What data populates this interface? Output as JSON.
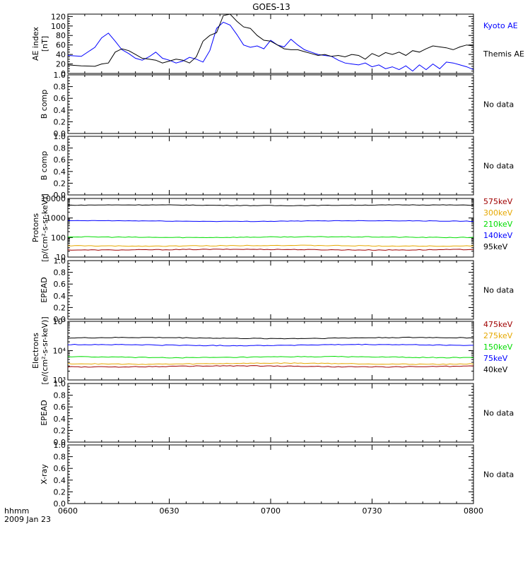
{
  "title": "GOES-13",
  "footer": {
    "line1": "hhmm",
    "line2": "2009 Jan 23"
  },
  "x_axis": {
    "tick_labels": [
      "0600",
      "0630",
      "0700",
      "0730",
      "0800"
    ],
    "range_minutes": [
      0,
      120
    ]
  },
  "no_data_text": "No data",
  "colors": {
    "black": "#000000",
    "blue": "#0000ff",
    "red": "#a00000",
    "orange": "#e6a800",
    "green": "#00dd00"
  },
  "chart_data": [
    {
      "type": "line",
      "id": "ae",
      "ylabel": [
        "AE index",
        "[nT]"
      ],
      "yscale": "linear",
      "ylim": [
        0,
        125
      ],
      "yticks": [
        0,
        20,
        40,
        60,
        80,
        100,
        120
      ],
      "series": [
        {
          "name": "Kyoto AE",
          "color": "#0000ff",
          "x": [
            0,
            4,
            8,
            10,
            12,
            14,
            16,
            18,
            20,
            22,
            24,
            26,
            28,
            30,
            32,
            34,
            36,
            38,
            40,
            42,
            44,
            46,
            48,
            50,
            52,
            54,
            56,
            58,
            60,
            62,
            64,
            66,
            68,
            70,
            72,
            74,
            76,
            78,
            80,
            82,
            84,
            86,
            88,
            90,
            92,
            94,
            96,
            98,
            100,
            102,
            104,
            106,
            108,
            110,
            112,
            114,
            116,
            118,
            120
          ],
          "y": [
            38,
            36,
            55,
            75,
            85,
            68,
            50,
            42,
            32,
            28,
            35,
            45,
            32,
            28,
            22,
            26,
            34,
            30,
            24,
            48,
            95,
            108,
            102,
            82,
            60,
            55,
            58,
            52,
            70,
            60,
            56,
            72,
            60,
            50,
            45,
            40,
            38,
            36,
            28,
            22,
            20,
            18,
            22,
            14,
            18,
            10,
            14,
            8,
            16,
            5,
            18,
            8,
            20,
            10,
            24,
            22,
            18,
            14,
            8
          ]
        },
        {
          "name": "Themis AE",
          "color": "#000000",
          "x": [
            0,
            4,
            8,
            10,
            12,
            14,
            16,
            18,
            20,
            22,
            24,
            26,
            28,
            30,
            32,
            34,
            36,
            38,
            40,
            42,
            44,
            46,
            48,
            50,
            52,
            54,
            56,
            58,
            60,
            62,
            64,
            66,
            68,
            70,
            72,
            74,
            76,
            78,
            80,
            82,
            84,
            86,
            88,
            90,
            92,
            94,
            96,
            98,
            100,
            102,
            104,
            106,
            108,
            110,
            112,
            114,
            116,
            118,
            120
          ],
          "y": [
            18,
            16,
            15,
            20,
            22,
            45,
            52,
            48,
            40,
            32,
            30,
            28,
            22,
            26,
            30,
            28,
            22,
            35,
            68,
            80,
            86,
            122,
            125,
            110,
            98,
            95,
            80,
            70,
            68,
            60,
            52,
            50,
            50,
            46,
            42,
            38,
            40,
            36,
            38,
            35,
            40,
            38,
            30,
            42,
            36,
            44,
            40,
            45,
            38,
            48,
            45,
            52,
            58,
            56,
            54,
            50,
            56,
            60,
            58
          ]
        }
      ],
      "side_labels": [
        {
          "text": "Kyoto AE",
          "color": "#0000ff"
        },
        {
          "text": "Themis AE",
          "color": "#000000"
        }
      ]
    },
    {
      "type": "line",
      "id": "b1",
      "ylabel": [
        "B comp"
      ],
      "yscale": "linear",
      "ylim": [
        0,
        1
      ],
      "yticks": [
        0.0,
        0.2,
        0.4,
        0.6,
        0.8,
        1.0
      ],
      "ytick_labels": [
        "0.0",
        "0.2",
        "0.4",
        "0.6",
        "0.8",
        "1.0"
      ],
      "series": [],
      "no_data": true
    },
    {
      "type": "line",
      "id": "b2",
      "ylabel": [
        "B comp"
      ],
      "yscale": "linear",
      "ylim": [
        0,
        1
      ],
      "yticks": [
        0.0,
        0.2,
        0.4,
        0.6,
        0.8,
        1.0
      ],
      "ytick_labels": [
        "0.0",
        "0.2",
        "0.4",
        "0.6",
        "0.8",
        "1.0"
      ],
      "series": [],
      "no_data": true
    },
    {
      "type": "line",
      "id": "protons",
      "ylabel": [
        "Protons",
        "[p/(cm²-s-sr-keV)]"
      ],
      "yscale": "log",
      "ylim": [
        10,
        10000
      ],
      "yticks": [
        10,
        100,
        1000,
        10000
      ],
      "ytick_labels": [
        "10",
        "100",
        "1000",
        "10000"
      ],
      "series": [
        {
          "name": "95keV",
          "color": "#000000",
          "base": 4500,
          "jitter": 0.03
        },
        {
          "name": "140keV",
          "color": "#0000ff",
          "base": 700,
          "jitter": 0.03
        },
        {
          "name": "210keV",
          "color": "#00dd00",
          "base": 105,
          "jitter": 0.04
        },
        {
          "name": "300keV",
          "color": "#e6a800",
          "base": 38,
          "jitter": 0.04
        },
        {
          "name": "575keV",
          "color": "#a00000",
          "base": 24,
          "jitter": 0.04
        }
      ],
      "side_labels": [
        {
          "text": "575keV",
          "color": "#a00000"
        },
        {
          "text": "300keV",
          "color": "#e6a800"
        },
        {
          "text": "210keV",
          "color": "#00dd00"
        },
        {
          "text": "140keV",
          "color": "#0000ff"
        },
        {
          "text": "95keV",
          "color": "#000000"
        }
      ]
    },
    {
      "type": "line",
      "id": "epead1",
      "ylabel": [
        "EPEAD"
      ],
      "yscale": "linear",
      "ylim": [
        0,
        1
      ],
      "yticks": [
        0.0,
        0.2,
        0.4,
        0.6,
        0.8,
        1.0
      ],
      "ytick_labels": [
        "0.0",
        "0.2",
        "0.4",
        "0.6",
        "0.8",
        "1.0"
      ],
      "series": [],
      "no_data": true
    },
    {
      "type": "line",
      "id": "electrons",
      "ylabel": [
        "Electrons",
        "[e/(cm²-s-sr-keV)]"
      ],
      "yscale": "log",
      "ylim": [
        1000,
        100000
      ],
      "yticks": [
        1000,
        10000,
        100000
      ],
      "ytick_labels": [
        "10³",
        "10⁴",
        "10⁵"
      ],
      "series": [
        {
          "name": "40keV",
          "color": "#000000",
          "base": 27000,
          "jitter": 0.03
        },
        {
          "name": "75keV",
          "color": "#0000ff",
          "base": 15500,
          "jitter": 0.03
        },
        {
          "name": "150keV",
          "color": "#00dd00",
          "base": 6000,
          "jitter": 0.03
        },
        {
          "name": "275keV",
          "color": "#e6a800",
          "base": 3600,
          "jitter": 0.03
        },
        {
          "name": "475keV",
          "color": "#a00000",
          "base": 2900,
          "jitter": 0.03
        }
      ],
      "side_labels": [
        {
          "text": "475keV",
          "color": "#a00000"
        },
        {
          "text": "275keV",
          "color": "#e6a800"
        },
        {
          "text": "150keV",
          "color": "#00dd00"
        },
        {
          "text": "75keV",
          "color": "#0000ff"
        },
        {
          "text": "40keV",
          "color": "#000000"
        }
      ]
    },
    {
      "type": "line",
      "id": "epead2",
      "ylabel": [
        "EPEAD"
      ],
      "yscale": "linear",
      "ylim": [
        0,
        1
      ],
      "yticks": [
        0.0,
        0.2,
        0.4,
        0.6,
        0.8,
        1.0
      ],
      "ytick_labels": [
        "0.0",
        "0.2",
        "0.4",
        "0.6",
        "0.8",
        "1.0"
      ],
      "series": [],
      "no_data": true
    },
    {
      "type": "line",
      "id": "xray",
      "ylabel": [
        "X-ray"
      ],
      "yscale": "linear",
      "ylim": [
        0,
        1
      ],
      "yticks": [
        0.0,
        0.2,
        0.4,
        0.6,
        0.8,
        1.0
      ],
      "ytick_labels": [
        "0.0",
        "0.2",
        "0.4",
        "0.6",
        "0.8",
        "1.0"
      ],
      "series": [],
      "no_data": true
    }
  ]
}
